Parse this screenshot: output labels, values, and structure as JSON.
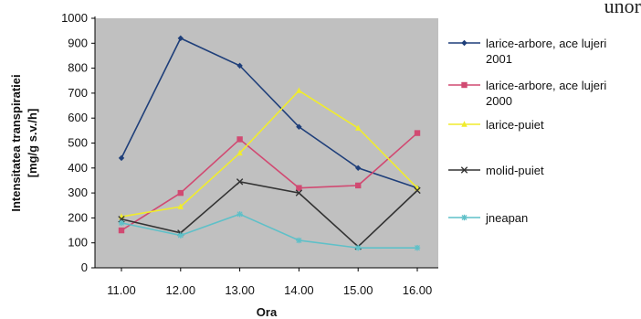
{
  "page": {
    "top_fragment": "unor"
  },
  "chart_data": {
    "type": "line",
    "title": "",
    "xlabel": "Ora",
    "ylabel_line1": "Intensitatea transpiratiei",
    "ylabel_line2": "[mg/g s.v./h]",
    "categories": [
      "11.00",
      "12.00",
      "13.00",
      "14.00",
      "15.00",
      "16.00"
    ],
    "ylim": [
      0,
      1000
    ],
    "yticks": [
      0,
      100,
      200,
      300,
      400,
      500,
      600,
      700,
      800,
      900,
      1000
    ],
    "grid": false,
    "plot_background": "#c0c0c0",
    "legend_position": "right",
    "series": [
      {
        "name": "larice-arbore, ace lujeri 2001",
        "legend_lines": [
          "larice-arbore, ace lujeri",
          "2001"
        ],
        "color": "#1f3f7a",
        "marker": "diamond",
        "values": [
          440,
          920,
          810,
          565,
          400,
          320
        ]
      },
      {
        "name": "larice-arbore, ace lujeri 2000",
        "legend_lines": [
          "larice-arbore, ace lujeri",
          "2000"
        ],
        "color": "#d14a72",
        "marker": "square",
        "values": [
          150,
          300,
          515,
          320,
          330,
          540
        ]
      },
      {
        "name": "larice-puiet",
        "legend_lines": [
          "larice-puiet"
        ],
        "color": "#f0ec2c",
        "marker": "triangle",
        "values": [
          205,
          245,
          460,
          710,
          560,
          320
        ]
      },
      {
        "name": "molid-puiet",
        "legend_lines": [
          "molid-puiet"
        ],
        "color": "#333333",
        "marker": "x",
        "values": [
          195,
          140,
          345,
          300,
          85,
          310
        ]
      },
      {
        "name": "jneapan",
        "legend_lines": [
          "jneapan"
        ],
        "color": "#5fc0c8",
        "marker": "star",
        "values": [
          180,
          130,
          215,
          110,
          80,
          80
        ]
      }
    ]
  }
}
